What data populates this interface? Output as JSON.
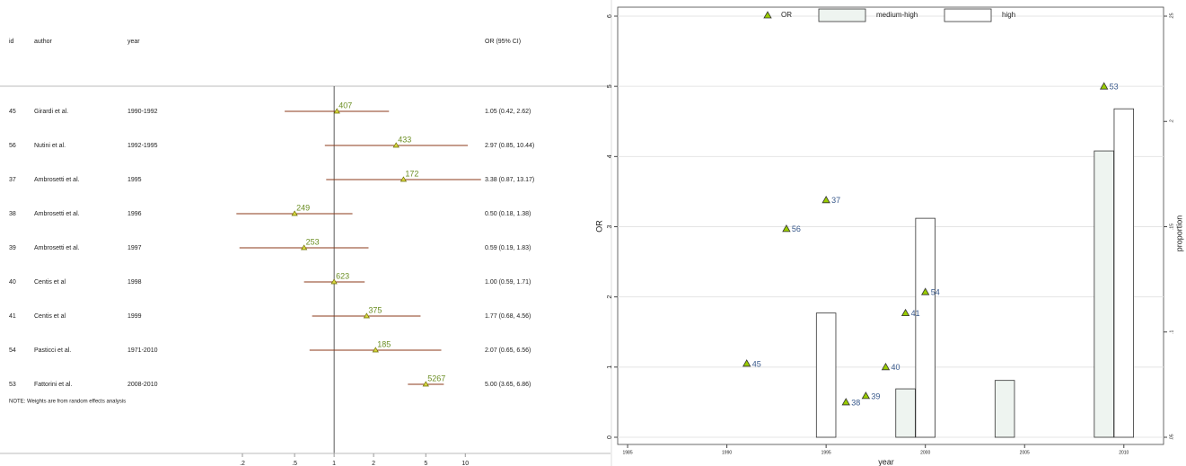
{
  "chart_data": [
    {
      "type": "forest",
      "headers": [
        "id",
        "author",
        "year",
        "OR (95% CI)"
      ],
      "ids": [
        45,
        56,
        37,
        38,
        39,
        40,
        41,
        54,
        53
      ],
      "authors": [
        "Girardi et al.",
        "Nutini et al.",
        "Ambrosetti et al.",
        "Ambrosetti et al.",
        "Ambrosetti et al.",
        "Centis et al",
        "Centis et al",
        "Pasticci et al.",
        "Fattorini et al."
      ],
      "years": [
        "1990-1992",
        "1992-1995",
        "1995",
        "1996",
        "1997",
        "1998",
        "1999",
        "1971-2010",
        "2008-2010"
      ],
      "values": [
        1.05,
        2.97,
        3.38,
        0.5,
        0.59,
        1.0,
        1.77,
        2.07,
        5.0
      ],
      "lower": [
        0.42,
        0.85,
        0.87,
        0.18,
        0.19,
        0.59,
        0.68,
        0.65,
        3.65
      ],
      "upper": [
        2.62,
        10.44,
        13.17,
        1.38,
        1.83,
        1.71,
        4.56,
        6.56,
        6.86
      ],
      "value_labels": [
        "1.05 (0.42, 2.62)",
        "2.97 (0.85, 10.44)",
        "3.38 (0.87, 13.17)",
        "0.50 (0.18, 1.38)",
        "0.59 (0.19, 1.83)",
        "1.00 (0.59, 1.71)",
        "1.77 (0.68, 4.56)",
        "2.07 (0.65, 6.56)",
        "5.00 (3.65, 6.86)"
      ],
      "weights": [
        407,
        433,
        172,
        249,
        253,
        623,
        375,
        185,
        5267
      ],
      "note": "NOTE: Weights are from random effects analysis",
      "log_x": true,
      "xlim": [
        0.1,
        15
      ],
      "xticks": [
        {
          "value": 0.2,
          "label": ".2"
        },
        {
          "value": 0.5,
          "label": ".5"
        },
        1,
        2,
        5,
        10
      ],
      "color": "#8b3a1a",
      "marker_color": "#d8d840"
    },
    {
      "type": "combo",
      "xlabel": "year",
      "ylabel": "OR",
      "y2label": "proportion",
      "xlim": [
        1984.5,
        2012
      ],
      "xticks": [
        1985,
        1990,
        1995,
        2000,
        2005,
        2010
      ],
      "ylim": [
        0,
        6
      ],
      "yticks": [
        0,
        1,
        2,
        3,
        4,
        5,
        6
      ],
      "y2lim": [
        0.05,
        0.25
      ],
      "y2ticks": [
        {
          "value": 0.05,
          "label": ".05"
        },
        {
          "value": 0.1,
          "label": ".1"
        },
        {
          "value": 0.15,
          "label": ".15"
        },
        {
          "value": 0.2,
          "label": ".2"
        },
        {
          "value": 0.25,
          "label": ".25"
        }
      ],
      "grid": true,
      "legend": "top",
      "series": [
        {
          "name": "OR",
          "type": "scatter",
          "color": "#99cc00",
          "x": [
            1991,
            1993,
            1995,
            1996,
            1997,
            1998,
            1999,
            2000,
            2009
          ],
          "values": [
            1.05,
            2.97,
            3.38,
            0.5,
            0.59,
            1.0,
            1.77,
            2.07,
            5.0
          ],
          "point_labels": [
            45,
            56,
            37,
            38,
            39,
            40,
            41,
            54,
            53
          ]
        },
        {
          "name": "medium-high",
          "type": "bar",
          "axis": "y2",
          "color": "#eef4f0",
          "x": [
            1999,
            2004,
            2009
          ],
          "values": [
            0.073,
            0.077,
            0.186
          ]
        },
        {
          "name": "high",
          "type": "bar",
          "axis": "y2",
          "color": "#ffffff",
          "x": [
            1995,
            2000,
            2010
          ],
          "values": [
            0.109,
            0.154,
            0.206
          ]
        }
      ]
    }
  ]
}
